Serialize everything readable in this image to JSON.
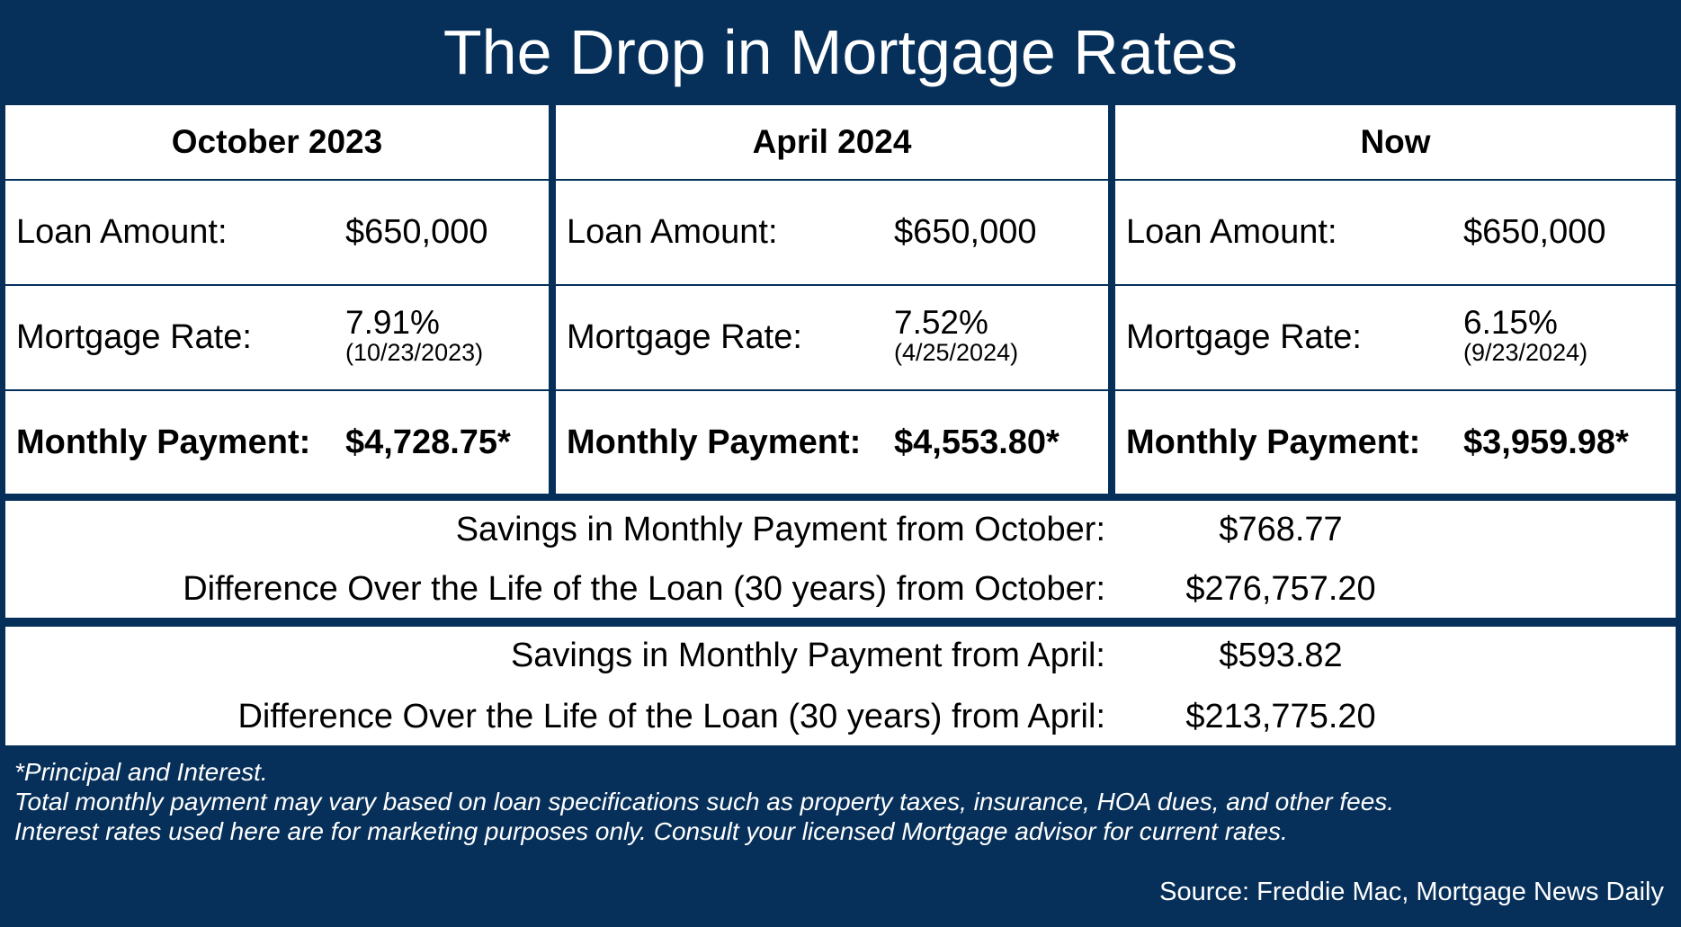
{
  "title": "The Drop in Mortgage Rates",
  "columns": [
    {
      "heading": "October 2023",
      "loan_label": "Loan Amount:",
      "loan_value": "$650,000",
      "rate_label": "Mortgage Rate:",
      "rate_value": "7.91%",
      "rate_date": "(10/23/2023)",
      "payment_label": "Monthly Payment:",
      "payment_value": "$4,728.75*"
    },
    {
      "heading": "April 2024",
      "loan_label": "Loan Amount:",
      "loan_value": "$650,000",
      "rate_label": "Mortgage Rate:",
      "rate_value": "7.52%",
      "rate_date": "(4/25/2024)",
      "payment_label": "Monthly Payment:",
      "payment_value": "$4,553.80*"
    },
    {
      "heading": "Now",
      "loan_label": "Loan Amount:",
      "loan_value": "$650,000",
      "rate_label": "Mortgage Rate:",
      "rate_value": "6.15%",
      "rate_date": "(9/23/2024)",
      "payment_label": "Monthly Payment:",
      "payment_value": "$3,959.98*"
    }
  ],
  "summary_october": {
    "savings_label": "Savings in Monthly Payment from October:",
    "savings_value": "$768.77",
    "difference_label": "Difference Over the Life of the Loan (30 years) from October:",
    "difference_value": "$276,757.20"
  },
  "summary_april": {
    "savings_label": "Savings in Monthly Payment from April:",
    "savings_value": "$593.82",
    "difference_label": "Difference Over the Life of the Loan (30 years) from April:",
    "difference_value": "$213,775.20"
  },
  "footer": {
    "line1": "*Principal and Interest.",
    "line2": "Total monthly payment may vary based on loan specifications such as property taxes, insurance, HOA dues, and other fees.",
    "line3": "Interest rates used here are for marketing purposes only. Consult your licensed Mortgage advisor for current rates."
  },
  "source": "Source: Freddie Mac, Mortgage News Daily",
  "colors": {
    "background": "#06305a",
    "panel": "#ffffff",
    "text": "#000000"
  }
}
